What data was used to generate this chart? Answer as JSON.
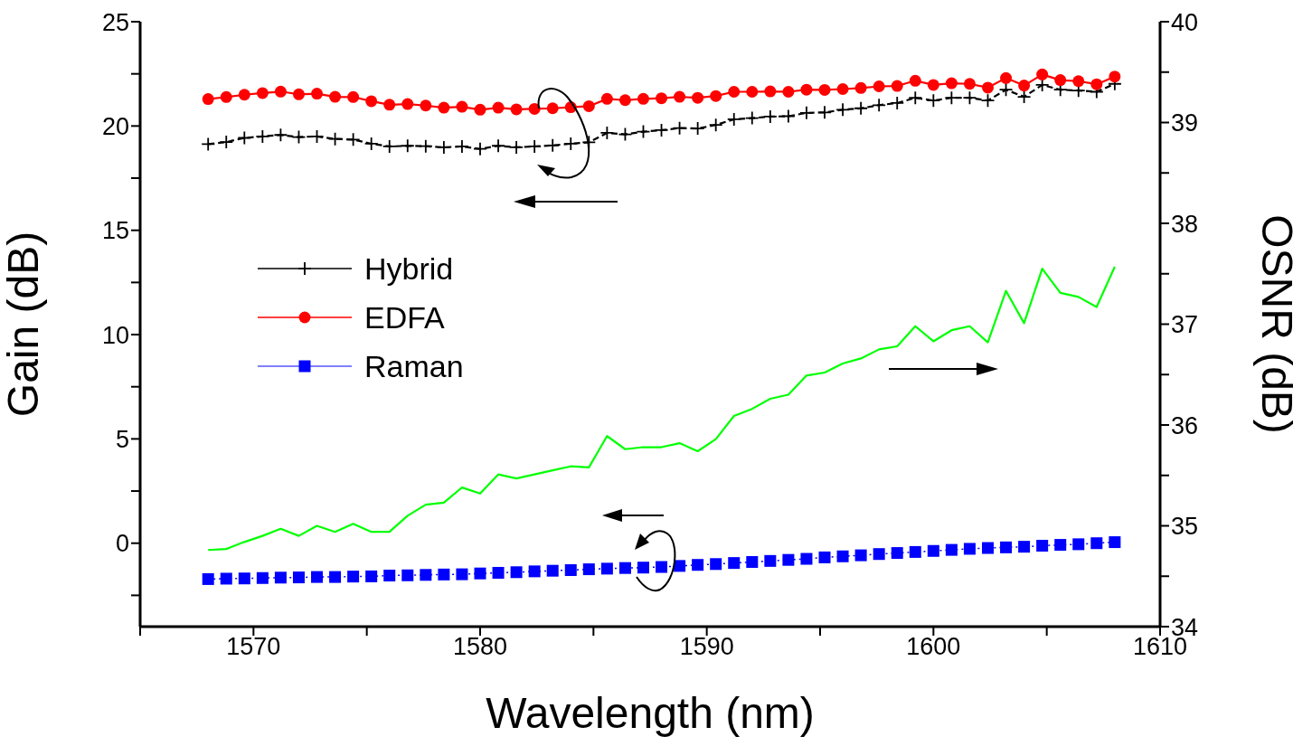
{
  "chart_data": {
    "type": "line",
    "xlabel": "Wavelength (nm)",
    "ylabel": "Gain (dB)",
    "y2label": "OSNR (dB)",
    "x": [
      1568,
      1568.8,
      1569.6,
      1570.4,
      1571.2,
      1572,
      1572.8,
      1573.6,
      1574.4,
      1575.2,
      1576,
      1576.8,
      1577.6,
      1578.4,
      1579.2,
      1580,
      1580.8,
      1581.6,
      1582.4,
      1583.2,
      1584,
      1584.8,
      1585.6,
      1586.4,
      1587.2,
      1588,
      1588.8,
      1589.6,
      1590.4,
      1591.2,
      1592,
      1592.8,
      1593.6,
      1594.4,
      1595.2,
      1596,
      1596.8,
      1597.6,
      1598.4,
      1599.2,
      1600,
      1600.8,
      1601.6,
      1602.4,
      1603.2,
      1604,
      1604.8,
      1605.6,
      1606.4,
      1607.2,
      1608
    ],
    "series": [
      {
        "name": "Hybrid",
        "color": "#000000",
        "marker": "cross",
        "line_style": "dashed",
        "values": [
          19.13,
          19.23,
          19.43,
          19.5,
          19.57,
          19.47,
          19.5,
          19.38,
          19.35,
          19.15,
          19.02,
          19.05,
          19.03,
          18.98,
          19.02,
          18.9,
          19.05,
          18.98,
          19.02,
          19.07,
          19.15,
          19.22,
          19.67,
          19.6,
          19.73,
          19.8,
          19.9,
          19.88,
          20.05,
          20.32,
          20.38,
          20.45,
          20.47,
          20.63,
          20.65,
          20.78,
          20.85,
          21.0,
          21.1,
          21.35,
          21.22,
          21.35,
          21.35,
          21.22,
          21.74,
          21.4,
          21.97,
          21.74,
          21.7,
          21.64,
          22.02
        ]
      },
      {
        "name": "EDFA",
        "color": "#ff0000",
        "marker": "circle",
        "line_style": "solid",
        "values": [
          21.29,
          21.39,
          21.5,
          21.58,
          21.65,
          21.52,
          21.55,
          21.4,
          21.39,
          21.19,
          21.02,
          21.05,
          20.98,
          20.88,
          20.92,
          20.78,
          20.88,
          20.8,
          20.82,
          20.85,
          20.9,
          20.95,
          21.3,
          21.24,
          21.3,
          21.33,
          21.4,
          21.35,
          21.44,
          21.64,
          21.64,
          21.66,
          21.64,
          21.74,
          21.73,
          21.77,
          21.82,
          21.9,
          21.92,
          22.17,
          21.97,
          22.05,
          22.02,
          21.84,
          22.3,
          21.94,
          22.47,
          22.2,
          22.15,
          22.0,
          22.37
        ]
      },
      {
        "name": "Raman",
        "color": "#0000ff",
        "marker": "square",
        "line_style": "dotted",
        "values": [
          -1.72,
          -1.7,
          -1.69,
          -1.67,
          -1.65,
          -1.64,
          -1.62,
          -1.62,
          -1.6,
          -1.59,
          -1.55,
          -1.54,
          -1.52,
          -1.5,
          -1.49,
          -1.45,
          -1.42,
          -1.39,
          -1.35,
          -1.32,
          -1.29,
          -1.25,
          -1.22,
          -1.19,
          -1.17,
          -1.14,
          -1.09,
          -1.04,
          -1.0,
          -0.95,
          -0.9,
          -0.85,
          -0.8,
          -0.75,
          -0.68,
          -0.63,
          -0.58,
          -0.52,
          -0.47,
          -0.42,
          -0.37,
          -0.32,
          -0.27,
          -0.23,
          -0.2,
          -0.17,
          -0.12,
          -0.08,
          -0.05,
          0.0,
          0.05
        ]
      },
      {
        "color": "#00ff00",
        "marker": "none",
        "line_style": "solid",
        "axis": "y2",
        "values": [
          34.76,
          34.77,
          34.84,
          34.9,
          34.97,
          34.9,
          35.0,
          34.94,
          35.02,
          34.94,
          34.94,
          35.1,
          35.21,
          35.23,
          35.38,
          35.32,
          35.51,
          35.47,
          35.51,
          35.55,
          35.59,
          35.58,
          35.89,
          35.76,
          35.78,
          35.78,
          35.82,
          35.74,
          35.86,
          36.09,
          36.16,
          36.26,
          36.3,
          36.49,
          36.52,
          36.61,
          36.66,
          36.75,
          36.78,
          36.98,
          36.83,
          36.94,
          36.98,
          36.82,
          37.33,
          37.01,
          37.55,
          37.31,
          37.27,
          37.17,
          37.57
        ]
      }
    ],
    "xlim": [
      1565,
      1610
    ],
    "xticks": [
      {
        "value": 1565,
        "label": null
      },
      1570,
      {
        "value": 1575,
        "label": null
      },
      1580,
      {
        "value": 1585,
        "label": null
      },
      1590,
      {
        "value": 1595,
        "label": null
      },
      1600,
      {
        "value": 1605,
        "label": null
      },
      1610
    ],
    "ylim": [
      -4,
      25
    ],
    "yticks": [
      {
        "value": -2.5,
        "label": null
      },
      0,
      {
        "value": 2.5,
        "label": null
      },
      5,
      {
        "value": 7.5,
        "label": null
      },
      10,
      {
        "value": 12.5,
        "label": null
      },
      15,
      {
        "value": 17.5,
        "label": null
      },
      20,
      {
        "value": 22.5,
        "label": null
      },
      25
    ],
    "y2lim": [
      34,
      40
    ],
    "y2ticks": [
      34,
      {
        "value": 34.5,
        "label": null
      },
      35,
      {
        "value": 35.5,
        "label": null
      },
      36,
      {
        "value": 36.5,
        "label": null
      },
      37,
      {
        "value": 37.5,
        "label": null
      },
      38,
      {
        "value": 38.5,
        "label": null
      },
      39,
      {
        "value": 39.5,
        "label": null
      },
      40
    ],
    "grid": false,
    "legend": "left"
  }
}
